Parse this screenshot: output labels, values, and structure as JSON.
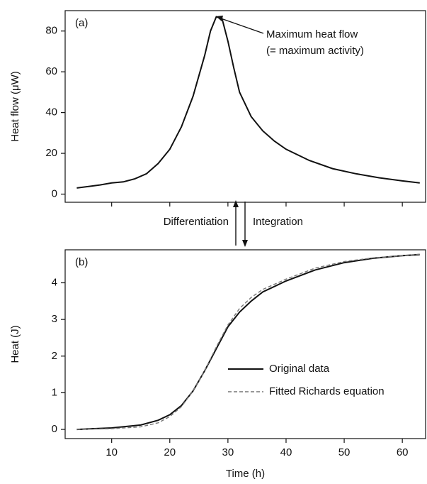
{
  "chart_data": [
    {
      "type": "line",
      "panel_label": "(a)",
      "y_label": "Heat flow (μW)",
      "annotation": [
        "Maximum heat flow",
        "(= maximum activity)"
      ],
      "x": [
        4,
        8,
        10,
        12,
        14,
        16,
        18,
        20,
        22,
        24,
        26,
        27,
        28,
        29,
        30,
        31,
        32,
        34,
        36,
        38,
        40,
        44,
        48,
        52,
        56,
        60,
        63
      ],
      "series": [
        {
          "name": "Heat flow",
          "color": "#111111",
          "dash": "solid",
          "values": [
            3,
            4.5,
            5.5,
            6,
            7.5,
            10,
            15,
            22,
            33,
            48,
            68,
            80,
            87,
            86,
            75,
            62,
            50,
            38,
            31,
            26,
            22,
            16.5,
            12.5,
            10,
            8,
            6.5,
            5.5
          ]
        }
      ],
      "xlim": [
        2,
        64
      ],
      "xticks": [
        10,
        20,
        30,
        40,
        50,
        60
      ],
      "show_xtick_labels": false,
      "ylim": [
        -4,
        90
      ],
      "yticks": [
        0,
        20,
        40,
        60,
        80
      ],
      "legend": false
    },
    {
      "type": "line",
      "panel_label": "(b)",
      "y_label": "Heat (J)",
      "x_label": "Time (h)",
      "x": [
        4,
        10,
        15,
        18,
        20,
        22,
        24,
        26,
        28,
        30,
        32,
        34,
        36,
        40,
        45,
        50,
        55,
        60,
        63
      ],
      "series": [
        {
          "name": "Original data",
          "color": "#111111",
          "dash": "solid",
          "values": [
            0,
            0.04,
            0.12,
            0.25,
            0.4,
            0.65,
            1.05,
            1.6,
            2.2,
            2.8,
            3.2,
            3.5,
            3.75,
            4.05,
            4.35,
            4.55,
            4.67,
            4.74,
            4.77
          ]
        },
        {
          "name": "Fitted Richards equation",
          "color": "#777777",
          "dash": "dashed",
          "values": [
            0,
            0.02,
            0.07,
            0.18,
            0.35,
            0.62,
            1.05,
            1.6,
            2.25,
            2.85,
            3.3,
            3.6,
            3.82,
            4.1,
            4.4,
            4.58,
            4.68,
            4.74,
            4.78
          ]
        }
      ],
      "xlim": [
        2,
        64
      ],
      "xticks": [
        10,
        20,
        30,
        40,
        50,
        60
      ],
      "show_xtick_labels": true,
      "ylim": [
        -0.25,
        4.9
      ],
      "yticks": [
        0,
        1,
        2,
        3,
        4
      ],
      "legend": true
    }
  ],
  "between_panels": {
    "left": "Differentiation",
    "right": "Integration"
  }
}
